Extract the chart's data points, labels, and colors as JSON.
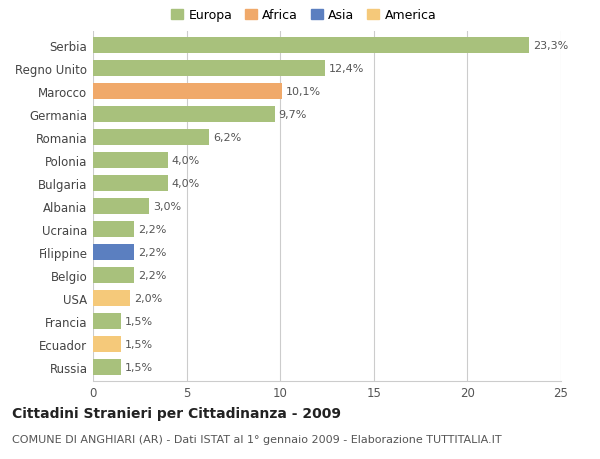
{
  "categories": [
    "Russia",
    "Ecuador",
    "Francia",
    "USA",
    "Belgio",
    "Filippine",
    "Ucraina",
    "Albania",
    "Bulgaria",
    "Polonia",
    "Romania",
    "Germania",
    "Marocco",
    "Regno Unito",
    "Serbia"
  ],
  "values": [
    1.5,
    1.5,
    1.5,
    2.0,
    2.2,
    2.2,
    2.2,
    3.0,
    4.0,
    4.0,
    6.2,
    9.7,
    10.1,
    12.4,
    23.3
  ],
  "labels": [
    "1,5%",
    "1,5%",
    "1,5%",
    "2,0%",
    "2,2%",
    "2,2%",
    "2,2%",
    "3,0%",
    "4,0%",
    "4,0%",
    "6,2%",
    "9,7%",
    "10,1%",
    "12,4%",
    "23,3%"
  ],
  "colors": [
    "#a8c17c",
    "#f5c97a",
    "#a8c17c",
    "#f5c97a",
    "#a8c17c",
    "#5b7fc0",
    "#a8c17c",
    "#a8c17c",
    "#a8c17c",
    "#a8c17c",
    "#a8c17c",
    "#a8c17c",
    "#f0a96a",
    "#a8c17c",
    "#a8c17c"
  ],
  "legend_labels": [
    "Europa",
    "Africa",
    "Asia",
    "America"
  ],
  "legend_colors": [
    "#a8c17c",
    "#f0a96a",
    "#5b7fc0",
    "#f5c97a"
  ],
  "title": "Cittadini Stranieri per Cittadinanza - 2009",
  "subtitle": "COMUNE DI ANGHIARI (AR) - Dati ISTAT al 1° gennaio 2009 - Elaborazione TUTTITALIA.IT",
  "xlim": [
    0,
    25
  ],
  "xticks": [
    0,
    5,
    10,
    15,
    20,
    25
  ],
  "background_color": "#ffffff",
  "grid_color": "#cccccc",
  "bar_height": 0.72,
  "title_fontsize": 10,
  "subtitle_fontsize": 8,
  "label_fontsize": 8,
  "tick_fontsize": 8.5,
  "legend_fontsize": 9
}
